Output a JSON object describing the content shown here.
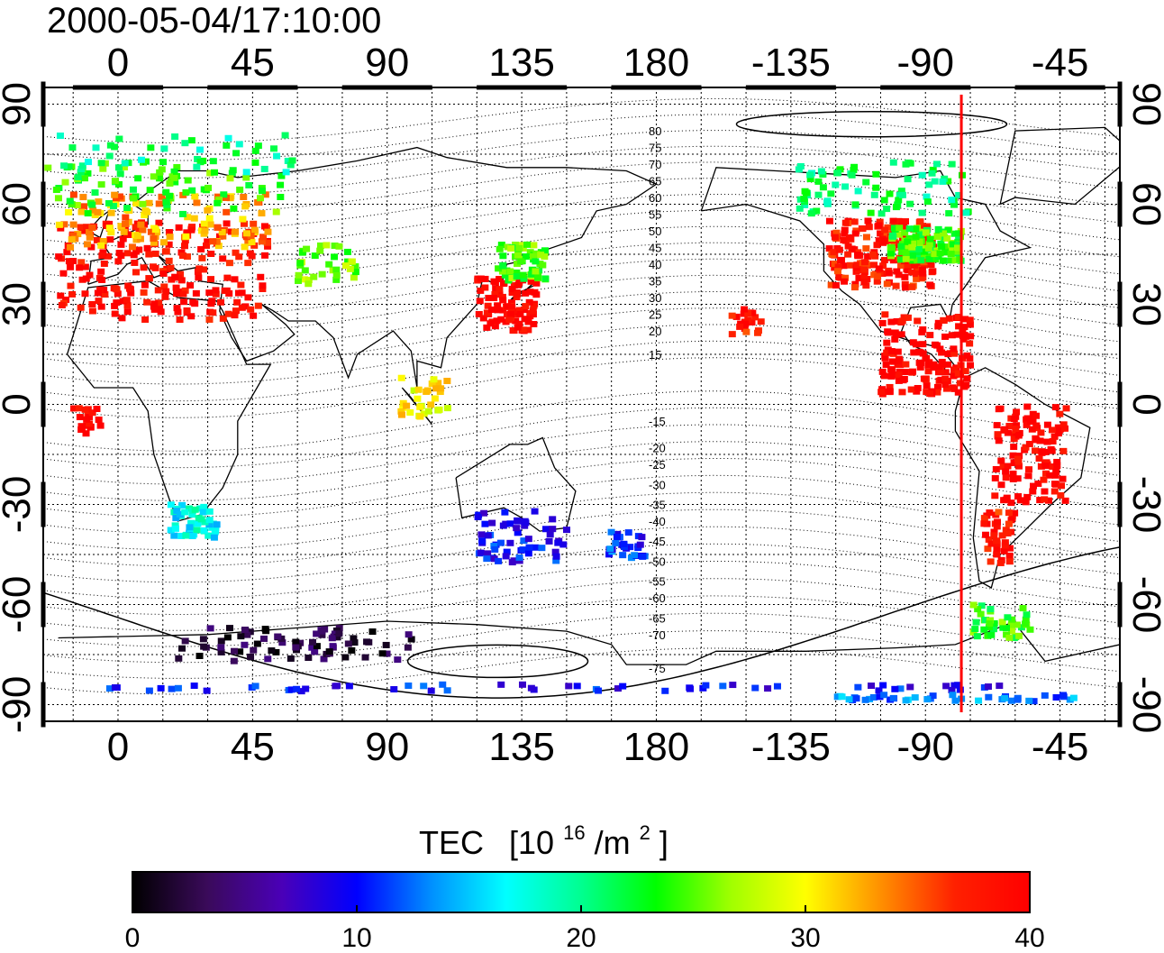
{
  "title": "2000-05-04/17:10:00",
  "colorbar": {
    "label": "TEC",
    "unit_prefix": "[10",
    "unit_exp": "16",
    "unit_mid": "/m",
    "unit_exp2": "2",
    "unit_suffix": "]",
    "ticks": [
      "0",
      "10",
      "20",
      "30",
      "40"
    ],
    "colors": [
      "#000000",
      "#3a0a5a",
      "#4a00b8",
      "#0000ff",
      "#0090ff",
      "#00ffff",
      "#00ff90",
      "#00ff00",
      "#a0ff00",
      "#ffff00",
      "#ff9000",
      "#ff2000",
      "#ff0000"
    ]
  },
  "map_data": {
    "projection": "equirectangular",
    "lon_center": 180,
    "lon_range": [
      -25,
      335
    ],
    "lat_range": [
      -95,
      95
    ],
    "grid": true,
    "x_ticks": [
      "0",
      "45",
      "90",
      "135",
      "180",
      "-135",
      "-90",
      "-45"
    ],
    "x_tick_lons": [
      0,
      45,
      90,
      135,
      180,
      225,
      270,
      315
    ],
    "y_ticks": [
      "90",
      "60",
      "30",
      "0",
      "-30",
      "-60",
      "-90"
    ],
    "y_tick_lats": [
      90,
      60,
      30,
      0,
      -30,
      -60,
      -90
    ],
    "terminator_lon": 282,
    "terminator_color": "#ff0000",
    "contour_labels": [
      "80",
      "75",
      "70",
      "65",
      "60",
      "55",
      "50",
      "45",
      "40",
      "35",
      "30",
      "25",
      "20",
      "15",
      "-15",
      "-20",
      "-25",
      "-30",
      "-35",
      "-40",
      "-45",
      "-50",
      "-55",
      "-60",
      "-65",
      "-70",
      "-75"
    ],
    "contour_label_lats": [
      82,
      77,
      72,
      67,
      62,
      57,
      52,
      47,
      42,
      37,
      32,
      27,
      22,
      15,
      -5,
      -13,
      -18,
      -24,
      -30,
      -35,
      -41,
      -47,
      -53,
      -58,
      -64,
      -69,
      -79
    ]
  },
  "tec_clusters": [
    {
      "lon": 15,
      "lat": 40,
      "dlon": 35,
      "dlat": 15,
      "count": 220,
      "tec": 39
    },
    {
      "lon": 15,
      "lat": 55,
      "dlon": 35,
      "dlat": 8,
      "count": 120,
      "tec": 33
    },
    {
      "lon": 15,
      "lat": 65,
      "dlon": 40,
      "dlat": 8,
      "count": 90,
      "tec": 24
    },
    {
      "lon": 20,
      "lat": 75,
      "dlon": 40,
      "dlat": 6,
      "count": 40,
      "tec": 20
    },
    {
      "lon": 70,
      "lat": 42,
      "dlon": 10,
      "dlat": 6,
      "count": 35,
      "tec": 26
    },
    {
      "lon": 130,
      "lat": 30,
      "dlon": 10,
      "dlat": 8,
      "count": 90,
      "tec": 40
    },
    {
      "lon": 135,
      "lat": 42,
      "dlon": 8,
      "dlat": 6,
      "count": 60,
      "tec": 25
    },
    {
      "lon": 102,
      "lat": 2,
      "dlon": 10,
      "dlat": 6,
      "count": 30,
      "tec": 30
    },
    {
      "lon": 255,
      "lat": 45,
      "dlon": 18,
      "dlat": 10,
      "count": 200,
      "tec": 38
    },
    {
      "lon": 270,
      "lat": 48,
      "dlon": 12,
      "dlat": 5,
      "count": 120,
      "tec": 24
    },
    {
      "lon": 255,
      "lat": 65,
      "dlon": 30,
      "dlat": 8,
      "count": 80,
      "tec": 21
    },
    {
      "lon": 270,
      "lat": 15,
      "dlon": 15,
      "dlat": 12,
      "count": 150,
      "tec": 40
    },
    {
      "lon": 305,
      "lat": -15,
      "dlon": 12,
      "dlat": 15,
      "count": 120,
      "tec": 40
    },
    {
      "lon": 295,
      "lat": -40,
      "dlon": 6,
      "dlat": 8,
      "count": 40,
      "tec": 38
    },
    {
      "lon": 295,
      "lat": -65,
      "dlon": 10,
      "dlat": 5,
      "count": 40,
      "tec": 24
    },
    {
      "lon": 210,
      "lat": 25,
      "dlon": 5,
      "dlat": 4,
      "count": 20,
      "tec": 38
    },
    {
      "lon": 25,
      "lat": -35,
      "dlon": 8,
      "dlat": 5,
      "count": 50,
      "tec": 17
    },
    {
      "lon": -10,
      "lat": -5,
      "dlon": 5,
      "dlat": 4,
      "count": 20,
      "tec": 40
    },
    {
      "lon": 135,
      "lat": -40,
      "dlon": 15,
      "dlat": 8,
      "count": 60,
      "tec": 10
    },
    {
      "lon": 170,
      "lat": -42,
      "dlon": 6,
      "dlat": 4,
      "count": 30,
      "tec": 11
    },
    {
      "lon": 60,
      "lat": -72,
      "dlon": 40,
      "dlat": 5,
      "count": 80,
      "tec": 2
    },
    {
      "lon": 150,
      "lat": -85,
      "dlon": 160,
      "dlat": 1,
      "count": 60,
      "tec": 10
    },
    {
      "lon": 280,
      "lat": -88,
      "dlon": 40,
      "dlat": 1,
      "count": 40,
      "tec": 13
    }
  ]
}
